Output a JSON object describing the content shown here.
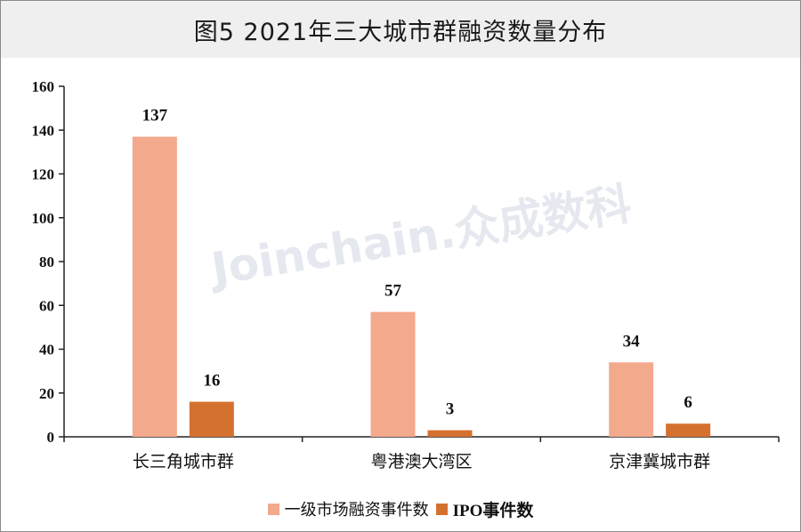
{
  "title": "图5  2021年三大城市群融资数量分布",
  "watermark": "Joinchain.众成数科",
  "colors": {
    "series1": "#f2a98c",
    "series2": "#d5712e",
    "axis": "#222222"
  },
  "chart_data": {
    "type": "bar",
    "categories": [
      "长三角城市群",
      "粤港澳大湾区",
      "京津冀城市群"
    ],
    "series": [
      {
        "name": "一级市场融资事件数",
        "values": [
          137,
          57,
          34
        ]
      },
      {
        "name": "IPO事件数",
        "values": [
          16,
          3,
          6
        ]
      }
    ],
    "ylim": [
      0,
      160
    ],
    "yticks": [
      "0",
      "20",
      "40",
      "60",
      "80",
      "100",
      "120",
      "140",
      "160"
    ],
    "grid": false,
    "legend": "bottom-center"
  }
}
